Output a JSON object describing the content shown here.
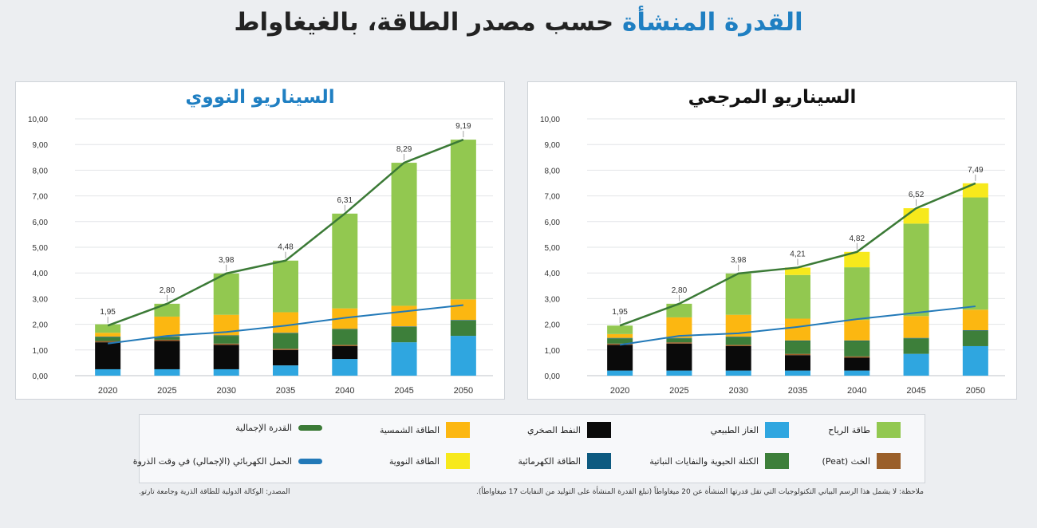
{
  "title": {
    "highlight": "القدرة المنشأة",
    "rest": "حسب مصدر الطاقة، بالغيغاواط"
  },
  "colors": {
    "wind": "#92c850",
    "gas": "#2fa6e0",
    "oil": "#0a0a0a",
    "solar": "#fcb711",
    "peat": "#9a5f2a",
    "biomass": "#3d7f3a",
    "hydro": "#0e5a80",
    "nuclear": "#f7e91c",
    "total_line": "#3b7a36",
    "peak_line": "#2279b8",
    "title_accent": "#1f7fc2",
    "reference_title": "#111111"
  },
  "legend": [
    {
      "key": "wind",
      "label": "طاقة الرياح",
      "kind": "box"
    },
    {
      "key": "gas",
      "label": "الغاز الطبيعي",
      "kind": "box"
    },
    {
      "key": "oil",
      "label": "النفط الصخري",
      "kind": "box"
    },
    {
      "key": "solar",
      "label": "الطاقة الشمسية",
      "kind": "box"
    },
    {
      "key": "total_line",
      "label": "القدرة الإجمالية",
      "kind": "line"
    },
    {
      "key": "peat",
      "label": "الخث (Peat)",
      "kind": "box"
    },
    {
      "key": "biomass",
      "label": "الكتلة الحيوية والنفايات النباتية",
      "kind": "box"
    },
    {
      "key": "hydro",
      "label": "الطاقة الكهرمائية",
      "kind": "box"
    },
    {
      "key": "nuclear",
      "label": "الطاقة النووية",
      "kind": "box"
    },
    {
      "key": "peak_line",
      "label": "الحمل الكهربائي (الإجمالي) في وقت الذروة",
      "kind": "line"
    }
  ],
  "note": "ملاحظة: لا يشمل هذا الرسم البياني التكنولوجيات التي تقل قدرتها المنشأة عن 20 ميغاواطاً (تبلغ القدرة المنشأة على التوليد من النفايات 17 ميغاواطاً).",
  "source": "المصدر: الوكالة الدولية للطاقة الذرية وجامعة تارتو.",
  "chart_data": [
    {
      "type": "bar",
      "title": "السيناريو المرجعي",
      "categories": [
        "2020",
        "2025",
        "2030",
        "2035",
        "2040",
        "2045",
        "2050"
      ],
      "ylim": [
        0,
        10
      ],
      "yticks": [
        "0,00",
        "1,00",
        "2,00",
        "3,00",
        "4,00",
        "5,00",
        "6,00",
        "7,00",
        "8,00",
        "9,00",
        "10,00"
      ],
      "stacked": true,
      "series": [
        {
          "name": "الغاز الطبيعي",
          "key": "gas",
          "values": [
            0.2,
            0.2,
            0.2,
            0.2,
            0.2,
            0.85,
            1.15
          ]
        },
        {
          "name": "النفط الصخري",
          "key": "oil",
          "values": [
            1.0,
            1.05,
            0.95,
            0.6,
            0.5,
            0,
            0
          ]
        },
        {
          "name": "الخث (Peat)",
          "key": "peat",
          "values": [
            0.05,
            0.05,
            0.05,
            0.05,
            0.05,
            0,
            0
          ]
        },
        {
          "name": "الكتلة الحيوية والنفايات النباتية",
          "key": "biomass",
          "values": [
            0.2,
            0.15,
            0.3,
            0.5,
            0.6,
            0.6,
            0.6
          ]
        },
        {
          "name": "الطاقة الكهرمائية",
          "key": "hydro",
          "values": [
            0.02,
            0.02,
            0.02,
            0.02,
            0.02,
            0.02,
            0.02
          ]
        },
        {
          "name": "الطاقة الشمسية",
          "key": "solar",
          "values": [
            0.15,
            0.8,
            0.85,
            0.85,
            0.8,
            0.85,
            0.8
          ]
        },
        {
          "name": "طاقة الرياح",
          "key": "wind",
          "values": [
            0.33,
            0.53,
            1.61,
            1.7,
            2.05,
            3.6,
            4.37
          ]
        },
        {
          "name": "الطاقة النووية",
          "key": "nuclear",
          "values": [
            0,
            0,
            0,
            0.29,
            0.6,
            0.6,
            0.55
          ]
        }
      ],
      "total_capacity": {
        "name": "القدرة الإجمالية",
        "values": [
          1.95,
          2.8,
          3.98,
          4.21,
          4.82,
          6.52,
          7.49
        ],
        "labels": [
          "1,95",
          "2,80",
          "3,98",
          "4,21",
          "4,82",
          "6,52",
          "7,49"
        ]
      },
      "peak_load": {
        "name": "الحمل الكهربائي (الإجمالي) في وقت الذروة",
        "values": [
          1.2,
          1.55,
          1.65,
          1.9,
          2.2,
          2.45,
          2.7
        ]
      }
    },
    {
      "type": "bar",
      "title": "السيناريو النووي",
      "categories": [
        "2020",
        "2025",
        "2030",
        "2035",
        "2040",
        "2045",
        "2050"
      ],
      "ylim": [
        0,
        10
      ],
      "yticks": [
        "0,00",
        "1,00",
        "2,00",
        "3,00",
        "4,00",
        "5,00",
        "6,00",
        "7,00",
        "8,00",
        "9,00",
        "10,00"
      ],
      "stacked": true,
      "series": [
        {
          "name": "الغاز الطبيعي",
          "key": "gas",
          "values": [
            0.25,
            0.25,
            0.25,
            0.4,
            0.65,
            1.3,
            1.55
          ]
        },
        {
          "name": "النفط الصخري",
          "key": "oil",
          "values": [
            1.05,
            1.1,
            0.95,
            0.6,
            0.5,
            0,
            0
          ]
        },
        {
          "name": "الخث (Peat)",
          "key": "peat",
          "values": [
            0.05,
            0.05,
            0.05,
            0.05,
            0.05,
            0,
            0
          ]
        },
        {
          "name": "الكتلة الحيوية والنفايات النباتية",
          "key": "biomass",
          "values": [
            0.15,
            0.1,
            0.3,
            0.6,
            0.6,
            0.6,
            0.6
          ]
        },
        {
          "name": "الطاقة الكهرمائية",
          "key": "hydro",
          "values": [
            0.02,
            0.02,
            0.02,
            0.02,
            0.02,
            0.02,
            0.02
          ]
        },
        {
          "name": "الطاقة الشمسية",
          "key": "solar",
          "values": [
            0.15,
            0.78,
            0.8,
            0.8,
            0.8,
            0.8,
            0.8
          ]
        },
        {
          "name": "طاقة الرياح",
          "key": "wind",
          "values": [
            0.33,
            0.5,
            1.61,
            2.01,
            3.69,
            5.57,
            6.22
          ]
        },
        {
          "name": "الطاقة النووية",
          "key": "nuclear",
          "values": [
            0,
            0,
            0,
            0,
            0,
            0,
            0
          ]
        }
      ],
      "total_capacity": {
        "name": "القدرة الإجمالية",
        "values": [
          1.95,
          2.8,
          3.98,
          4.48,
          6.31,
          8.29,
          9.19
        ],
        "labels": [
          "1,95",
          "2,80",
          "3,98",
          "4,48",
          "6,31",
          "8,29",
          "9,19"
        ]
      },
      "peak_load": {
        "name": "الحمل الكهربائي (الإجمالي) في وقت الذروة",
        "values": [
          1.25,
          1.55,
          1.7,
          1.95,
          2.25,
          2.5,
          2.75
        ]
      }
    }
  ]
}
